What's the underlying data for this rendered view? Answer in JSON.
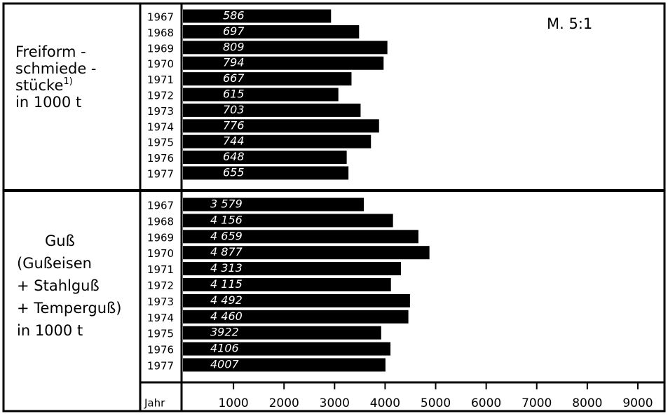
{
  "chart_data": [
    {
      "type": "bar",
      "orientation": "horizontal",
      "color": "#000000",
      "label_lines": [
        "Freiform -",
        "schmiede -",
        "stücke",
        "in 1000 t"
      ],
      "footnote": "1)",
      "scale_label": "M. 5:1",
      "categories": [
        "1967",
        "1968",
        "1969",
        "1970",
        "1971",
        "1972",
        "1973",
        "1974",
        "1975",
        "1976",
        "1977"
      ],
      "values": [
        586,
        697,
        809,
        794,
        667,
        615,
        703,
        776,
        744,
        648,
        655
      ],
      "xlim": [
        0,
        1900
      ]
    },
    {
      "type": "bar",
      "orientation": "horizontal",
      "color": "#000000",
      "label_lines": [
        "Guß",
        "(Gußeisen",
        "+ Stahlguß",
        "+ Temperguß)",
        "in 1000 t"
      ],
      "categories": [
        "1967",
        "1968",
        "1969",
        "1970",
        "1971",
        "1972",
        "1973",
        "1974",
        "1975",
        "1976",
        "1977"
      ],
      "values": [
        3579,
        4156,
        4659,
        4877,
        4313,
        4115,
        4492,
        4460,
        3922,
        4106,
        4007
      ],
      "value_labels": [
        "3 579",
        "4 156",
        "4 659",
        "4 877",
        "4 313",
        "4 115",
        "4 492",
        "4 460",
        "3922",
        "4106",
        "4007"
      ],
      "xlim": [
        0,
        9500
      ],
      "xticks": [
        1000,
        2000,
        3000,
        4000,
        5000,
        6000,
        7000,
        8000,
        9000
      ],
      "y_label": "Jahr"
    }
  ]
}
